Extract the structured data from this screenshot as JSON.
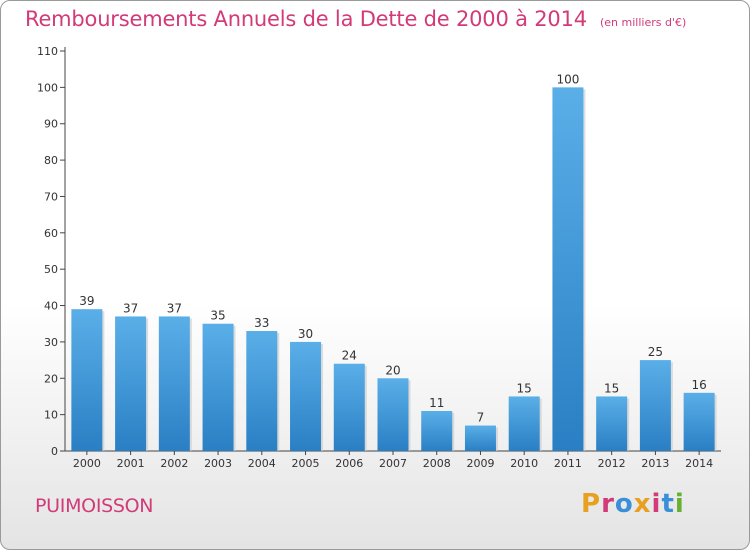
{
  "title": "Remboursements Annuels de la Dette de 2000 à 2014",
  "subtitle": "(en milliers d'€)",
  "commune": "PUIMOISSON",
  "logo": {
    "text": "Proxiti",
    "colors": [
      "#e8a020",
      "#d23a78",
      "#3a8fd8",
      "#e8a020",
      "#d23a78",
      "#3a8fd8",
      "#66b032"
    ]
  },
  "colors": {
    "bar_light": "#5aafe8",
    "bar_dark": "#2a7fc4",
    "accent": "#d23a78"
  },
  "chart_data": {
    "type": "bar",
    "categories": [
      "2000",
      "2001",
      "2002",
      "2003",
      "2004",
      "2005",
      "2006",
      "2007",
      "2008",
      "2009",
      "2010",
      "2011",
      "2012",
      "2013",
      "2014"
    ],
    "values": [
      39,
      37,
      37,
      35,
      33,
      30,
      24,
      20,
      11,
      7,
      15,
      100,
      15,
      25,
      16
    ],
    "ylim": [
      0,
      110
    ],
    "yticks": [
      0,
      10,
      20,
      30,
      40,
      50,
      60,
      70,
      80,
      90,
      100,
      110
    ],
    "grid": false,
    "data_labels": true
  }
}
